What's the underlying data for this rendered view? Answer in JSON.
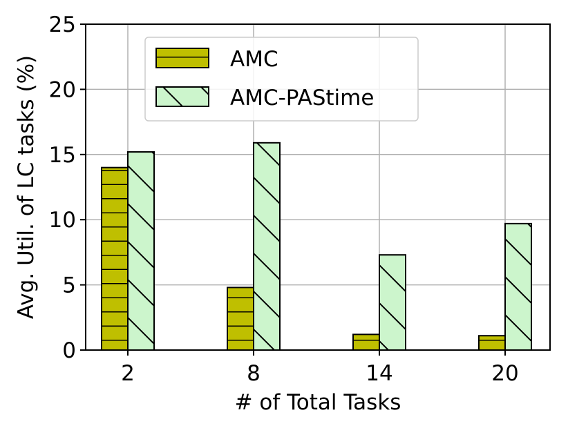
{
  "chart_data": {
    "type": "bar",
    "xlabel": "# of Total Tasks",
    "ylabel": "Avg. Util. of LC tasks (%)",
    "categories": [
      "2",
      "8",
      "14",
      "20"
    ],
    "ylim": [
      0,
      25
    ],
    "yticks": [
      "0",
      "5",
      "10",
      "15",
      "20",
      "25"
    ],
    "grid": true,
    "legend_position": "top-left",
    "series": [
      {
        "name": "AMC",
        "values": [
          14.0,
          4.8,
          1.2,
          1.1
        ],
        "color": "#bfbf00",
        "hatch": "horizontal"
      },
      {
        "name": "AMC-PAStime",
        "values": [
          15.2,
          15.9,
          7.3,
          9.7
        ],
        "color": "#ccf5cc",
        "hatch": "backslash"
      }
    ]
  }
}
